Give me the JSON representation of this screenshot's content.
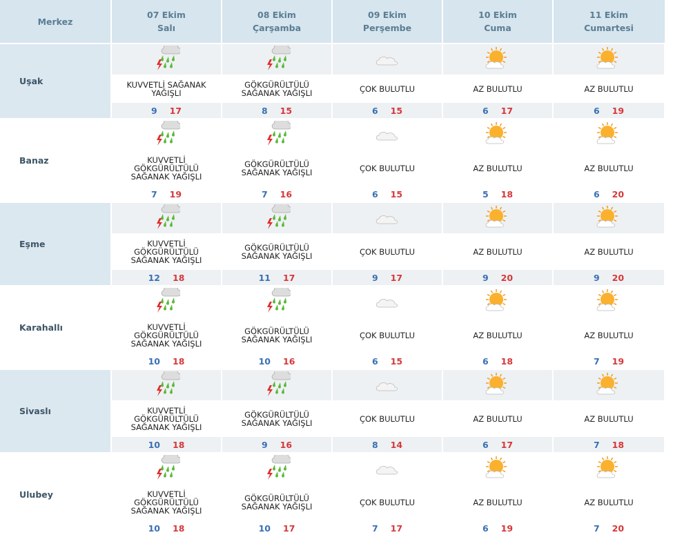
{
  "header": {
    "location": "Merkez",
    "days": [
      {
        "date": "07 Ekim",
        "weekday": "Salı"
      },
      {
        "date": "08 Ekim",
        "weekday": "Çarşamba"
      },
      {
        "date": "09 Ekim",
        "weekday": "Perşembe"
      },
      {
        "date": "10 Ekim",
        "weekday": "Cuma"
      },
      {
        "date": "11 Ekim",
        "weekday": "Cumartesi"
      }
    ]
  },
  "rows": [
    {
      "name": "Uşak",
      "days": [
        {
          "condition": "KUVVETLİ SAĞANAK YAĞIŞLI",
          "min": 9,
          "max": 17
        },
        {
          "condition": "GÖKGÜRÜLTÜLÜ SAĞANAK YAĞIŞLI",
          "min": 8,
          "max": 15
        },
        {
          "condition": "ÇOK BULUTLU",
          "min": 6,
          "max": 15
        },
        {
          "condition": "AZ BULUTLU",
          "min": 6,
          "max": 17
        },
        {
          "condition": "AZ BULUTLU",
          "min": 6,
          "max": 19
        }
      ]
    },
    {
      "name": "Banaz",
      "days": [
        {
          "condition": "KUVVETLİ GÖKGÜRÜLTÜLÜ SAĞANAK YAĞIŞLI",
          "min": 7,
          "max": 19
        },
        {
          "condition": "GÖKGÜRÜLTÜLÜ SAĞANAK YAĞIŞLI",
          "min": 7,
          "max": 16
        },
        {
          "condition": "ÇOK BULUTLU",
          "min": 6,
          "max": 15
        },
        {
          "condition": "AZ BULUTLU",
          "min": 5,
          "max": 18
        },
        {
          "condition": "AZ BULUTLU",
          "min": 6,
          "max": 20
        }
      ]
    },
    {
      "name": "Eşme",
      "days": [
        {
          "condition": "KUVVETLİ GÖKGÜRÜLTÜLÜ SAĞANAK YAĞIŞLI",
          "min": 12,
          "max": 18
        },
        {
          "condition": "GÖKGÜRÜLTÜLÜ SAĞANAK YAĞIŞLI",
          "min": 11,
          "max": 17
        },
        {
          "condition": "ÇOK BULUTLU",
          "min": 9,
          "max": 17
        },
        {
          "condition": "AZ BULUTLU",
          "min": 9,
          "max": 20
        },
        {
          "condition": "AZ BULUTLU",
          "min": 9,
          "max": 20
        }
      ]
    },
    {
      "name": "Karahallı",
      "days": [
        {
          "condition": "KUVVETLİ GÖKGÜRÜLTÜLÜ SAĞANAK YAĞIŞLI",
          "min": 10,
          "max": 18
        },
        {
          "condition": "GÖKGÜRÜLTÜLÜ SAĞANAK YAĞIŞLI",
          "min": 10,
          "max": 16
        },
        {
          "condition": "ÇOK BULUTLU",
          "min": 6,
          "max": 15
        },
        {
          "condition": "AZ BULUTLU",
          "min": 6,
          "max": 18
        },
        {
          "condition": "AZ BULUTLU",
          "min": 7,
          "max": 19
        }
      ]
    },
    {
      "name": "Sivaslı",
      "days": [
        {
          "condition": "KUVVETLİ GÖKGÜRÜLTÜLÜ SAĞANAK YAĞIŞLI",
          "min": 10,
          "max": 18
        },
        {
          "condition": "GÖKGÜRÜLTÜLÜ SAĞANAK YAĞIŞLI",
          "min": 9,
          "max": 16
        },
        {
          "condition": "ÇOK BULUTLU",
          "min": 8,
          "max": 14
        },
        {
          "condition": "AZ BULUTLU",
          "min": 6,
          "max": 17
        },
        {
          "condition": "AZ BULUTLU",
          "min": 7,
          "max": 18
        }
      ]
    },
    {
      "name": "Ulubey",
      "days": [
        {
          "condition": "KUVVETLİ GÖKGÜRÜLTÜLÜ SAĞANAK YAĞIŞLI",
          "min": 10,
          "max": 18
        },
        {
          "condition": "GÖKGÜRÜLTÜLÜ SAĞANAK YAĞIŞLI",
          "min": 10,
          "max": 17
        },
        {
          "condition": "ÇOK BULUTLU",
          "min": 7,
          "max": 17
        },
        {
          "condition": "AZ BULUTLU",
          "min": 6,
          "max": 19
        },
        {
          "condition": "AZ BULUTLU",
          "min": 7,
          "max": 20
        }
      ]
    }
  ]
}
